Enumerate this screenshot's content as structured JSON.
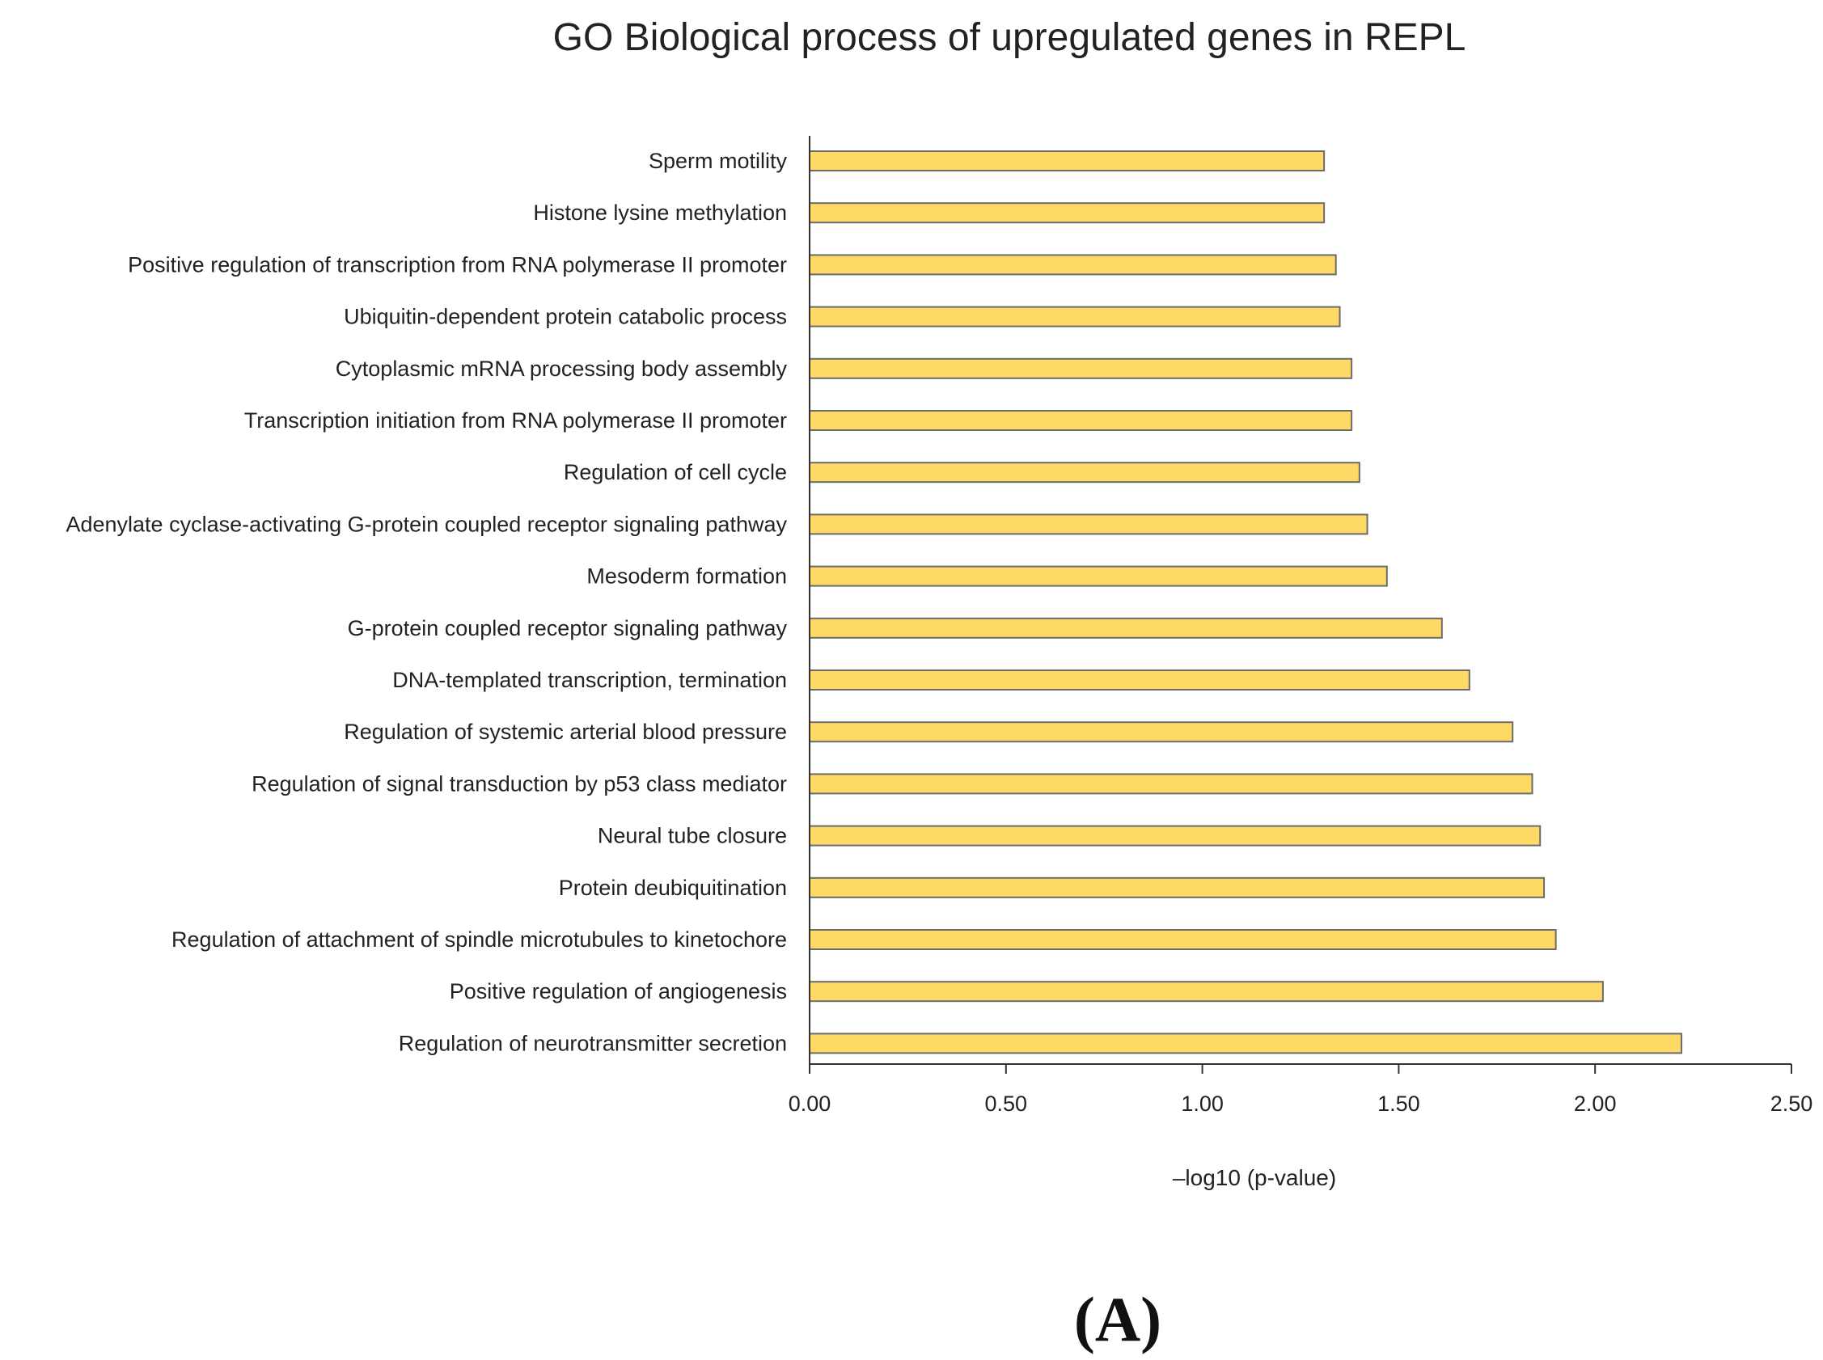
{
  "colors": {
    "bar": "#FFD966",
    "bar_edge": "#6b6b6b",
    "axis": "#333333",
    "text": "#222222"
  },
  "panel_label": "(A)",
  "chart_data": {
    "type": "bar",
    "orientation": "horizontal",
    "title": "GO Biological process of upregulated genes in REPL",
    "xlabel": "–log10 (p-value)",
    "ylabel": "",
    "xlim": [
      0,
      2.5
    ],
    "xticks": [
      "0.00",
      "0.50",
      "1.00",
      "1.50",
      "2.00",
      "2.50"
    ],
    "grid": false,
    "categories": [
      "Sperm motility",
      "Histone lysine methylation",
      "Positive regulation of transcription from RNA polymerase II promoter",
      "Ubiquitin-dependent protein catabolic process",
      "Cytoplasmic mRNA processing body assembly",
      "Transcription initiation from RNA polymerase II promoter",
      "Regulation of cell cycle",
      "Adenylate cyclase-activating G-protein coupled receptor signaling pathway",
      "Mesoderm formation",
      "G-protein coupled receptor signaling pathway",
      "DNA-templated transcription, termination",
      "Regulation of systemic arterial blood pressure",
      "Regulation of signal transduction by p53 class mediator",
      "Neural tube closure",
      "Protein deubiquitination",
      "Regulation of attachment of spindle microtubules to kinetochore",
      "Positive regulation of angiogenesis",
      "Regulation of neurotransmitter secretion"
    ],
    "values": [
      1.31,
      1.31,
      1.34,
      1.35,
      1.38,
      1.38,
      1.4,
      1.42,
      1.47,
      1.61,
      1.68,
      1.79,
      1.84,
      1.86,
      1.87,
      1.9,
      2.02,
      2.22
    ]
  }
}
